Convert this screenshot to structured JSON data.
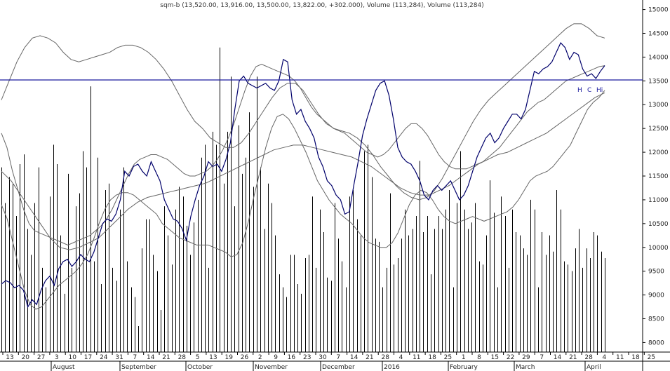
{
  "chart_data": {
    "type": "line",
    "title": "sqm-b (13,520.00, 13,916.00, 13,500.00, 13,822.00, +302.000), Volume (113,284), Volume (113,284)",
    "y_ticks": [
      8000,
      8500,
      9000,
      9500,
      10000,
      10500,
      11000,
      11500,
      12000,
      12500,
      13000,
      13500,
      14000,
      14500,
      15000
    ],
    "ylim": [
      7800,
      15200
    ],
    "day_ticks": [
      "13",
      "20",
      "27",
      "3",
      "10",
      "17",
      "24",
      "31",
      "7",
      "14",
      "21",
      "28",
      "5",
      "13",
      "19",
      "26",
      "2",
      "9",
      "16",
      "23",
      "30",
      "7",
      "14",
      "21",
      "28",
      "4",
      "11",
      "18",
      "25",
      "1",
      "8",
      "15",
      "22",
      "29",
      "7",
      "14",
      "21",
      "28",
      "4",
      "11",
      "18",
      "25"
    ],
    "month_labels": [
      "August",
      "September",
      "October",
      "November",
      "December",
      "2016",
      "February",
      "March",
      "April"
    ],
    "reference_line": 13520,
    "annotation_labels": [
      "H",
      "C",
      "Hi"
    ],
    "series": [
      {
        "values": [
          9230,
          9300,
          9260,
          9150,
          9200,
          9100,
          8750,
          8900,
          8800,
          9100,
          9300,
          9400,
          9200,
          9550,
          9700,
          9750,
          9600,
          9700,
          9850,
          9750,
          9700,
          9900,
          10200,
          10500,
          10600,
          10550,
          10700,
          11000,
          11600,
          11500,
          11700,
          11750,
          11600,
          11500,
          11800,
          11600,
          11400,
          11000,
          10800,
          10600,
          10550,
          10400,
          10150,
          10650,
          11000,
          11300,
          11500,
          11800,
          11700,
          11750,
          11600,
          11850,
          12200,
          12900,
          13500,
          13600,
          13450,
          13400,
          13350,
          13400,
          13450,
          13350,
          13300,
          13500,
          13950,
          13900,
          13100,
          12800,
          12900,
          12650,
          12500,
          12300,
          11900,
          11700,
          11400,
          11300,
          11100,
          11000,
          10700,
          10750,
          11300,
          11800,
          12350,
          12700,
          13000,
          13300,
          13450,
          13500,
          13200,
          12700,
          12100,
          11900,
          11800,
          11750,
          11600,
          11400,
          11100,
          11000,
          11200,
          11300,
          11200,
          11300,
          11400,
          11200,
          11000,
          11100,
          11300,
          11600,
          11900,
          12100,
          12300,
          12400,
          12200,
          12300,
          12500,
          12650,
          12800,
          12800,
          12700,
          12900,
          13300,
          13700,
          13650,
          13750,
          13800,
          13900,
          14100,
          14300,
          14200,
          13950,
          14100,
          14050,
          13750,
          13600,
          13650,
          13550,
          13700,
          13822
        ]
      },
      {
        "values": [
          12400,
          12100,
          11600,
          11200,
          10800,
          10500,
          10350,
          10300,
          10250,
          10200,
          10150,
          10100,
          10050,
          10100,
          10150,
          10200,
          10250,
          10350,
          10450,
          10600,
          10800,
          11050,
          11300,
          11550,
          11750,
          11850,
          11900,
          11950,
          11950,
          11900,
          11850,
          11750,
          11650,
          11550,
          11500,
          11500,
          11550,
          11600,
          11700,
          11850,
          12050,
          12300,
          12600,
          12950,
          13300,
          13600,
          13800,
          13850,
          13800,
          13750,
          13700,
          13650,
          13600,
          13500,
          13350,
          13150,
          12950,
          12800,
          12700,
          12600,
          12500,
          12450,
          12400,
          12300,
          12200,
          12100,
          12000,
          11950,
          11900,
          11950,
          12050,
          12200,
          12350,
          12500,
          12600,
          12600,
          12500,
          12350,
          12150,
          11950,
          11800,
          11700,
          11650,
          11650,
          11650,
          11700,
          11750,
          11800,
          11900,
          12000,
          12100,
          12250,
          12400,
          12550,
          12700,
          12850,
          12950,
          13050,
          13100,
          13200,
          13300,
          13400,
          13500,
          13550,
          13600,
          13650,
          13700,
          13750,
          13800,
          13820
        ]
      },
      {
        "values": [
          11600,
          11400,
          11100,
          10800,
          10500,
          10200,
          10000,
          9950,
          10000,
          10100,
          10200,
          10400,
          10600,
          10800,
          10950,
          11050,
          11100,
          11150,
          11200,
          11250,
          11300,
          11350,
          11450,
          11550,
          11650,
          11750,
          11850,
          11950,
          12050,
          12100,
          12150,
          12150,
          12100,
          12050,
          12000,
          11950,
          11900,
          11800,
          11700,
          11550,
          11400,
          11250,
          11150,
          11100,
          11100,
          11200,
          11300,
          11450,
          11600,
          11750,
          11850,
          11950,
          12000,
          12100,
          12200,
          12300,
          12400,
          12550,
          12700,
          12850,
          13000,
          13150,
          13250
        ]
      },
      {
        "values": [
          10900,
          10600,
          10100,
          9600,
          9100,
          8800,
          8700,
          8750,
          8900,
          9050,
          9200,
          9300,
          9400,
          9500,
          9650,
          9850,
          10150,
          10500,
          10800,
          11000,
          11100,
          11150,
          11150,
          11100,
          11000,
          10900,
          10800,
          10700,
          10500,
          10400,
          10300,
          10200,
          10150,
          10100,
          10050,
          10050,
          10050,
          10000,
          9950,
          9900,
          9800,
          9850,
          10100,
          10550,
          11100,
          11600,
          12100,
          12500,
          12750,
          12800,
          12700,
          12500,
          12250,
          12000,
          11700,
          11400,
          11200,
          11000,
          10850,
          10700,
          10600,
          10500,
          10350,
          10200,
          10100,
          10050,
          10000,
          10000,
          10100,
          10300,
          10600,
          10900,
          11100,
          11200,
          11150,
          11000,
          10800,
          10650,
          10550,
          10500,
          10550,
          10600,
          10650,
          10600,
          10550,
          10600,
          10650,
          10700,
          10750,
          10850,
          11000,
          11200,
          11400,
          11500,
          11550,
          11600,
          11700,
          11850,
          12000,
          12150,
          12400,
          12650,
          12900,
          13050,
          13150,
          13300
        ]
      },
      {
        "values": [
          13100,
          13500,
          13900,
          14200,
          14400,
          14450,
          14400,
          14300,
          14100,
          13950,
          13900,
          13950,
          14000,
          14050,
          14100,
          14200,
          14250,
          14250,
          14200,
          14100,
          13950,
          13750,
          13500,
          13200,
          12900,
          12650,
          12500,
          12300,
          12200,
          12100,
          12100,
          12200,
          12400,
          12650,
          12900,
          13150,
          13350,
          13450,
          13450,
          13300,
          13050,
          12800,
          12600,
          12500,
          12450,
          12400,
          12300,
          12150,
          11950,
          11700,
          11500,
          11300,
          11150,
          11050,
          11000,
          11050,
          11200,
          11450,
          11750,
          12050,
          12350,
          12650,
          12900,
          13100,
          13250,
          13400,
          13550,
          13700,
          13850,
          14000,
          14150,
          14300,
          14450,
          14600,
          14700,
          14700,
          14600,
          14450,
          14400
        ]
      }
    ],
    "volume_heights": [
      0.57,
      0.46,
      0.54,
      0.52,
      0.42,
      0.58,
      0.61,
      0.38,
      0.3,
      0.46,
      0.57,
      0.26,
      0.2,
      0.48,
      0.64,
      0.58,
      0.36,
      0.18,
      0.55,
      0.26,
      0.45,
      0.49,
      0.62,
      0.57,
      0.82,
      0.28,
      0.6,
      0.21,
      0.5,
      0.52,
      0.26,
      0.22,
      0.44,
      0.57,
      0.28,
      0.2,
      0.17,
      0.08,
      0.32,
      0.41,
      0.41,
      0.3,
      0.25,
      0.13,
      0.45,
      0.36,
      0.27,
      0.44,
      0.51,
      0.48,
      0.39,
      0.3,
      0.4,
      0.47,
      0.6,
      0.64,
      0.26,
      0.68,
      0.64,
      0.94,
      0.52,
      0.68,
      0.85,
      0.45,
      0.7,
      0.55,
      0.6,
      0.74,
      0.51,
      0.85,
      0.57,
      0.38,
      0.52,
      0.46,
      0.36,
      0.24,
      0.2,
      0.17,
      0.3,
      0.3,
      0.21,
      0.18,
      0.29,
      0.3,
      0.48,
      0.26,
      0.44,
      0.37,
      0.23,
      0.22,
      0.46,
      0.35,
      0.28,
      0.2,
      0.48,
      0.5,
      0.41,
      0.36,
      0.62,
      0.64,
      0.54,
      0.35,
      0.34,
      0.2,
      0.26,
      0.49,
      0.27,
      0.29,
      0.35,
      0.44,
      0.36,
      0.38,
      0.42,
      0.59,
      0.37,
      0.42,
      0.24,
      0.38,
      0.42,
      0.38,
      0.44,
      0.5,
      0.2,
      0.46,
      0.62,
      0.44,
      0.38,
      0.4,
      0.46,
      0.28,
      0.27,
      0.36,
      0.53,
      0.43,
      0.2,
      0.48,
      0.42,
      0.26,
      0.44,
      0.37,
      0.36,
      0.32,
      0.3,
      0.47,
      0.44,
      0.2,
      0.37,
      0.3,
      0.36,
      0.31,
      0.5,
      0.44,
      0.28,
      0.27,
      0.25,
      0.32,
      0.38,
      0.26,
      0.32,
      0.29,
      0.37,
      0.36,
      0.31,
      0.29
    ]
  }
}
